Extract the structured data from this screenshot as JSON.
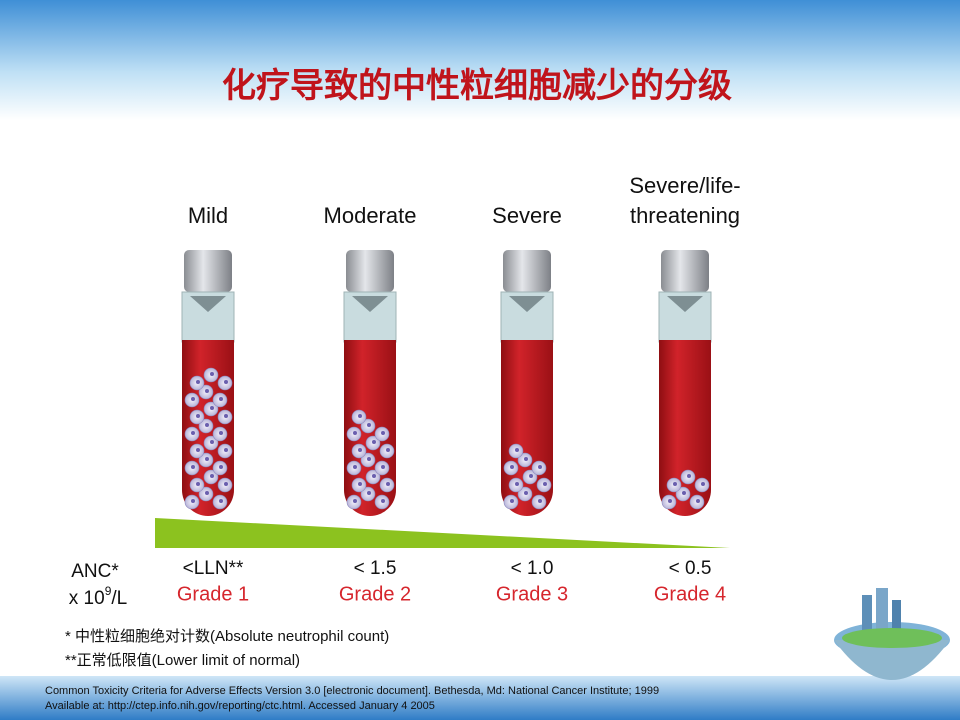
{
  "title": "化疗导致的中性粒细胞减少的分级",
  "grades": [
    {
      "label": [
        "Mild"
      ],
      "threshold": "<LLN**",
      "grade": "Grade 1"
    },
    {
      "label": [
        "Moderate"
      ],
      "threshold": "< 1.5",
      "grade": "Grade 2"
    },
    {
      "label": [
        "Severe"
      ],
      "threshold": "< 1.0",
      "grade": "Grade 3"
    },
    {
      "label": [
        "Severe/life-",
        "threatening"
      ],
      "threshold": "< 0.5",
      "grade": "Grade 4"
    }
  ],
  "anc": {
    "line1": "ANC*",
    "line2_base": "x 10",
    "line2_sup": "9",
    "line2_unit": "/L"
  },
  "footnotes": [
    "* 中性粒细胞绝对计数(Absolute neutrophil count)",
    "**正常低限值(Lower limit of normal)"
  ],
  "references": [
    "Common Toxicity Criteria for Adverse Effects Version 3.0 [electronic document]. Bethesda, Md: National Cancer Institute; 1999",
    "Available at: http://ctep.info.nih.gov/reporting/ctc.html. Accessed January 4 2005"
  ]
}
